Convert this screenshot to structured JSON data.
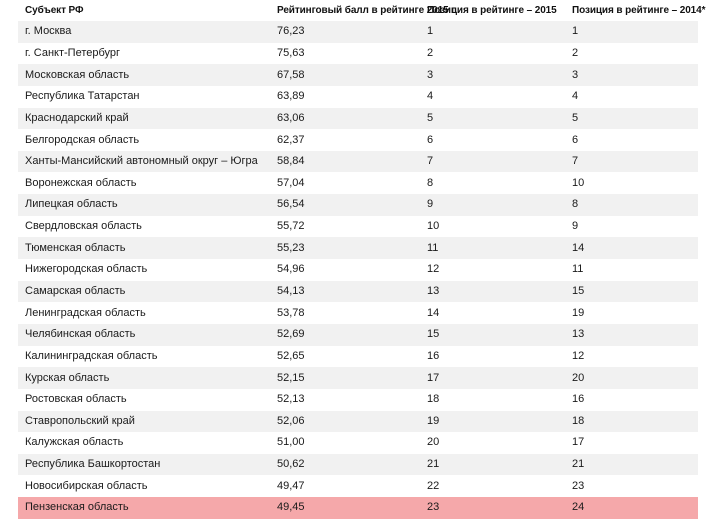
{
  "table": {
    "header": {
      "columns": [
        "Субъект РФ",
        "Рейтинговый балл в рейтинге 2015 г.",
        "Позиция в рейтинге – 2015",
        "Позиция в рейтинге – 2014*"
      ]
    },
    "rows": [
      {
        "region": "г. Москва",
        "score": "76,23",
        "pos_2015": "1",
        "pos_2014": "1",
        "highlighted": false
      },
      {
        "region": "г. Санкт-Петербург",
        "score": "75,63",
        "pos_2015": "2",
        "pos_2014": "2",
        "highlighted": false
      },
      {
        "region": "Московская область",
        "score": "67,58",
        "pos_2015": "3",
        "pos_2014": "3",
        "highlighted": false
      },
      {
        "region": "Республика Татарстан",
        "score": "63,89",
        "pos_2015": "4",
        "pos_2014": "4",
        "highlighted": false
      },
      {
        "region": "Краснодарский край",
        "score": "63,06",
        "pos_2015": "5",
        "pos_2014": "5",
        "highlighted": false
      },
      {
        "region": "Белгородская область",
        "score": "62,37",
        "pos_2015": "6",
        "pos_2014": "6",
        "highlighted": false
      },
      {
        "region": "Ханты-Мансийский автономный округ – Югра",
        "score": "58,84",
        "pos_2015": "7",
        "pos_2014": "7",
        "highlighted": false
      },
      {
        "region": "Воронежская область",
        "score": "57,04",
        "pos_2015": "8",
        "pos_2014": "10",
        "highlighted": false
      },
      {
        "region": "Липецкая область",
        "score": "56,54",
        "pos_2015": "9",
        "pos_2014": "8",
        "highlighted": false
      },
      {
        "region": "Свердловская область",
        "score": "55,72",
        "pos_2015": "10",
        "pos_2014": "9",
        "highlighted": false
      },
      {
        "region": "Тюменская область",
        "score": "55,23",
        "pos_2015": "11",
        "pos_2014": "14",
        "highlighted": false
      },
      {
        "region": "Нижегородская область",
        "score": "54,96",
        "pos_2015": "12",
        "pos_2014": "11",
        "highlighted": false
      },
      {
        "region": "Самарская область",
        "score": "54,13",
        "pos_2015": "13",
        "pos_2014": "15",
        "highlighted": false
      },
      {
        "region": "Ленинградская область",
        "score": "53,78",
        "pos_2015": "14",
        "pos_2014": "19",
        "highlighted": false
      },
      {
        "region": "Челябинская область",
        "score": "52,69",
        "pos_2015": "15",
        "pos_2014": "13",
        "highlighted": false
      },
      {
        "region": "Калининградская область",
        "score": "52,65",
        "pos_2015": "16",
        "pos_2014": "12",
        "highlighted": false
      },
      {
        "region": "Курская область",
        "score": "52,15",
        "pos_2015": "17",
        "pos_2014": "20",
        "highlighted": false
      },
      {
        "region": "Ростовская область",
        "score": "52,13",
        "pos_2015": "18",
        "pos_2014": "16",
        "highlighted": false
      },
      {
        "region": "Ставропольский край",
        "score": "52,06",
        "pos_2015": "19",
        "pos_2014": "18",
        "highlighted": false
      },
      {
        "region": "Калужская область",
        "score": "51,00",
        "pos_2015": "20",
        "pos_2014": "17",
        "highlighted": false
      },
      {
        "region": "Республика Башкортостан",
        "score": "50,62",
        "pos_2015": "21",
        "pos_2014": "21",
        "highlighted": false
      },
      {
        "region": "Новосибирская область",
        "score": "49,47",
        "pos_2015": "22",
        "pos_2014": "23",
        "highlighted": false
      },
      {
        "region": "Пензенская область",
        "score": "49,45",
        "pos_2015": "23",
        "pos_2014": "24",
        "highlighted": true
      }
    ],
    "colors": {
      "stripe": "#f1f1f1",
      "plain": "#ffffff",
      "highlight": "#f5a8aa",
      "text": "#1a1a1a"
    }
  }
}
